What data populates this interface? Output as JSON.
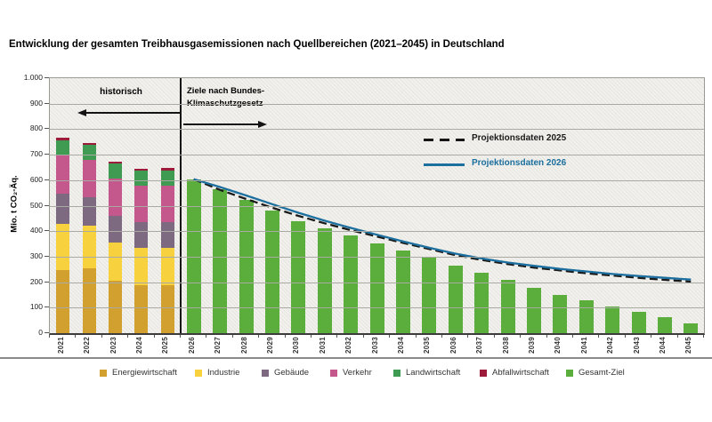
{
  "title": "Entwicklung der gesamten Treibhausgasemissionen nach Quellbereichen (2021–2045) in Deutschland",
  "chart_data": {
    "type": "bar",
    "title": "Entwicklung der gesamten Treibhausgasemissionen nach Quellbereichen (2021–2045) in Deutschland",
    "xlabel": "",
    "ylabel": "Mio. t CO₂-Äq.",
    "ylim": [
      0,
      1000
    ],
    "ytick_step": 100,
    "ytick_labels": [
      "1.000",
      "900",
      "800",
      "700",
      "600",
      "500",
      "400",
      "300",
      "200",
      "100",
      "0"
    ],
    "grid": true,
    "legend_position": "bottom",
    "annotations": {
      "historical_label": "historisch",
      "target_label_line1": "Ziele nach Bundes-",
      "target_label_line2": "Klimaschutzgesetz"
    },
    "historical": {
      "years": [
        "2021",
        "2022",
        "2023",
        "2024",
        "2025"
      ],
      "stacked": true,
      "sectors": [
        {
          "name": "Energiewirtschaft",
          "color": "#D2A02E",
          "values": [
            247,
            256,
            205,
            188,
            188
          ]
        },
        {
          "name": "Industrie",
          "color": "#F7D23E",
          "values": [
            181,
            164,
            152,
            148,
            146
          ]
        },
        {
          "name": "Gebäude",
          "color": "#7D6A80",
          "values": [
            120,
            112,
            103,
            100,
            103
          ]
        },
        {
          "name": "Verkehr",
          "color": "#C4588C",
          "values": [
            148,
            147,
            145,
            143,
            141
          ]
        },
        {
          "name": "Landwirtschaft",
          "color": "#3E9B51",
          "values": [
            61,
            60,
            59,
            59,
            61
          ]
        },
        {
          "name": "Abfallwirtschaft",
          "color": "#9C1B3B",
          "values": [
            8,
            8,
            8,
            8,
            8
          ]
        }
      ],
      "totals": [
        765,
        747,
        672,
        646,
        647
      ]
    },
    "target": {
      "name": "Gesamt-Ziel",
      "color": "#5BAD3C",
      "years": [
        "2026",
        "2027",
        "2028",
        "2029",
        "2030",
        "2031",
        "2032",
        "2033",
        "2034",
        "2035",
        "2036",
        "2037",
        "2038",
        "2039",
        "2040",
        "2041",
        "2042",
        "2043",
        "2044",
        "2045"
      ],
      "values": [
        604,
        563,
        522,
        481,
        440,
        411,
        382,
        353,
        324,
        295,
        266,
        237,
        208,
        179,
        150,
        128,
        106,
        84,
        62,
        40
      ]
    },
    "projections": [
      {
        "name": "Projektionsdaten 2025",
        "style": "dashed",
        "color": "#1A1A1A",
        "values": [
          604,
          562,
          526,
          492,
          460,
          431,
          404,
          379,
          354,
          330,
          306,
          287,
          271,
          257,
          246,
          235,
          226,
          217,
          209,
          202
        ]
      },
      {
        "name": "Projektionsdaten 2026",
        "style": "solid",
        "color": "#1C6F9E",
        "values": [
          604,
          573,
          540,
          506,
          472,
          441,
          413,
          386,
          360,
          335,
          312,
          293,
          277,
          264,
          252,
          242,
          232,
          224,
          217,
          210
        ]
      }
    ]
  }
}
